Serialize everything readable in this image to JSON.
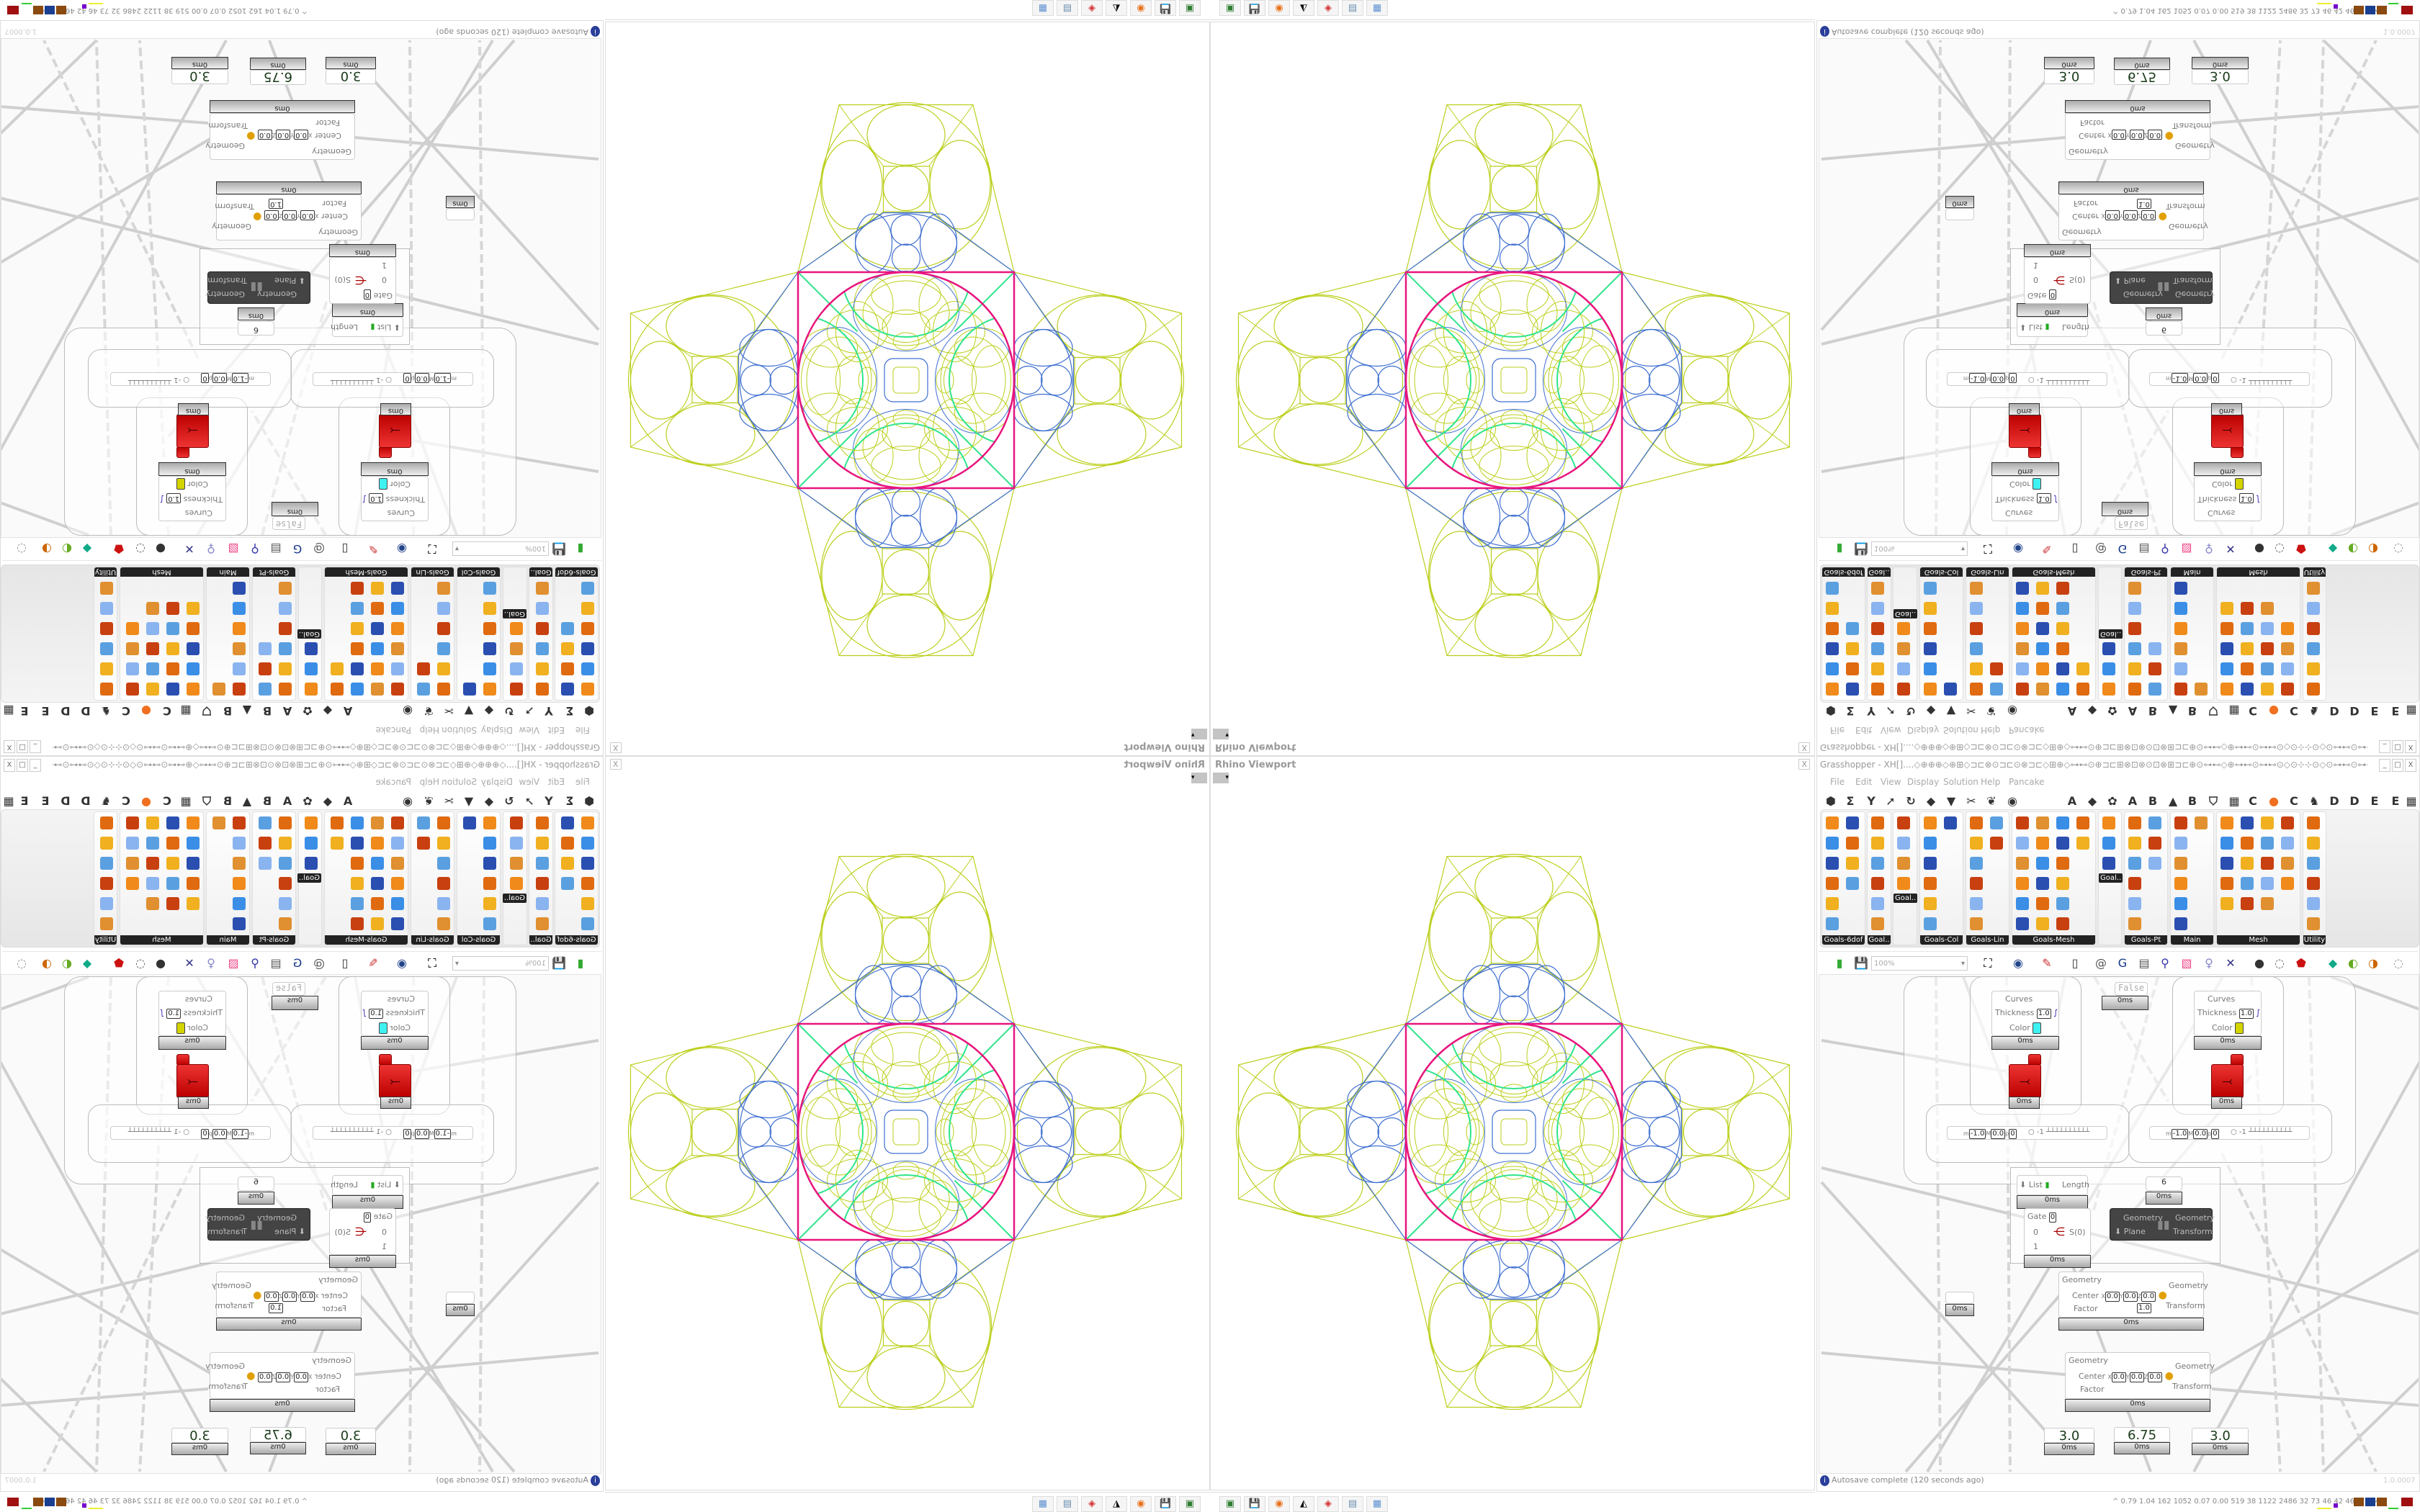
{
  "rhino": {
    "title": "Rhino Viewport",
    "close": "X",
    "dropdown": "▾"
  },
  "geometry_colors": {
    "outer": "#bccf1c",
    "cluster": "#3f6fd0",
    "frame": "#e8157d",
    "accent": "#2fe58c"
  },
  "taskbar": [
    {
      "icon": "terminal-icon",
      "glyph": "▣",
      "color": "#2e7d32"
    },
    {
      "icon": "floppy-64-icon",
      "glyph": "💾",
      "color": "#3a3aa0"
    },
    {
      "icon": "firefox-icon",
      "glyph": "◉",
      "color": "#e8701a"
    },
    {
      "icon": "inkscape-icon",
      "glyph": "◭",
      "color": "#000000"
    },
    {
      "icon": "red-app-icon",
      "glyph": "◈",
      "color": "#d32f2f"
    },
    {
      "icon": "notepad-icon",
      "glyph": "▤",
      "color": "#6a8fb0"
    },
    {
      "icon": "calculator-icon",
      "glyph": "▦",
      "color": "#5b8fd0"
    }
  ],
  "gh": {
    "title": "Grasshopper - XH[]....◇⊕⊕⊕◇⊕⊞◇⊐⊏⊗⊙⊐⊏⊙⊗⊐⊏◇⊞⊕◇⊶⊷⊙⊕⊐⊏⊞⊗⊡⊗⊙⊡⊗⊞⊐⊏⊕⊙⊶⊷◇⊕⊶⊷⊙⊶⊷⊙◇⊙⊹⊹⊙◇⊙⊶⊷⊙⊶⊷⊕◇⊶⊷⊙⊕⊐⊏⊞⊗⊡⊗⊙",
    "window_buttons": [
      "_",
      "□",
      "X"
    ],
    "menu": [
      "File",
      "Edit",
      "View",
      "Display",
      "Solution",
      "Help",
      "Pancake"
    ],
    "icon_row": [
      "⬢",
      "Σ",
      "Y",
      "➚",
      "↻",
      "◆",
      "▼",
      "✂",
      "❦",
      "◉",
      "A",
      "◆",
      "✿",
      "A",
      "B",
      "▲",
      "B",
      "⛉",
      "▦",
      "C",
      "●",
      "C",
      "♞",
      "D",
      "D",
      "E",
      "E",
      "▦"
    ],
    "tab_groups": [
      "Goals-6dof",
      "Goal..",
      "",
      "Goals-Col",
      "Goals-Lin",
      "Goals-Mesh",
      "",
      "Goals-Pt",
      "Main",
      "Mesh",
      "Utility"
    ],
    "floating_labels": [
      "Goal..",
      "Goal.."
    ],
    "toolbar": {
      "zoom": "100%",
      "tools": [
        "new-file-icon",
        "save-icon",
        "zoom-extents-icon",
        "preview-eye-icon",
        "sketch-icon",
        "cluster-icon",
        "email-icon",
        "gha-icon",
        "document-icon",
        "search-icon",
        "unknown-box-icon",
        "bulb-icon",
        "wires-icon",
        "preview-off-icon",
        "wireframe-icon",
        "shaded-icon",
        "bake-icon",
        "mesh-icon",
        "material-icon",
        "dotted-circle-icon"
      ]
    },
    "canvas": {
      "timing": "0ms",
      "displays": [
        {
          "inputs": [
            "Curves",
            "Thickness",
            "Color"
          ],
          "thickness": "1.0",
          "color": "#3ff2f2"
        },
        {
          "inputs": [
            "Curves",
            "Thickness",
            "Color"
          ],
          "thickness": "1.0",
          "color": "#d4d400"
        }
      ],
      "sliders": [
        {
          "m_label": "m",
          "min": "-1.0",
          "M_label": "M",
          "max": "0.0",
          "p_label": "p",
          "precision": "0",
          "value": "-1"
        },
        {
          "m_label": "m",
          "min": "-1.0",
          "M_label": "M",
          "max": "0.0",
          "p_label": "p",
          "precision": "0",
          "value": "-1"
        }
      ],
      "toggle": "False",
      "list_length": {
        "input": "List",
        "output": "Length"
      },
      "panel_value": "6",
      "gate": {
        "label": "Gate",
        "value": "0",
        "inputs": [
          "0",
          "1"
        ],
        "output": "S(0)"
      },
      "orient": {
        "inputs": [
          "Geometry",
          "Plane"
        ],
        "outputs": [
          "Geometry",
          "Transform"
        ]
      },
      "scale1": {
        "inputs": [
          "Geometry",
          "Center",
          "Factor"
        ],
        "outputs": [
          "Geometry",
          "Transform"
        ],
        "x": "0.0",
        "y": "0.0",
        "z": "0.0",
        "factor": "1.0"
      },
      "scale2": {
        "inputs": [
          "Geometry",
          "Center",
          "Factor"
        ],
        "outputs": [
          "Geometry",
          "Transform"
        ],
        "x": "0.0",
        "y": "0.0",
        "z": "0.0"
      },
      "axis_labels": [
        "X",
        "Y",
        "Z"
      ],
      "numbers": [
        "3.0",
        "6.75",
        "3.0"
      ]
    },
    "status": {
      "message": "Autosave complete (120 seconds ago)",
      "info": "i",
      "version": "1.0.0007"
    },
    "perf": "^  0.79 1.04 162 1052 0.07 0.00 519  38  1122 2486  32  73  46  42  4675 6848"
  }
}
